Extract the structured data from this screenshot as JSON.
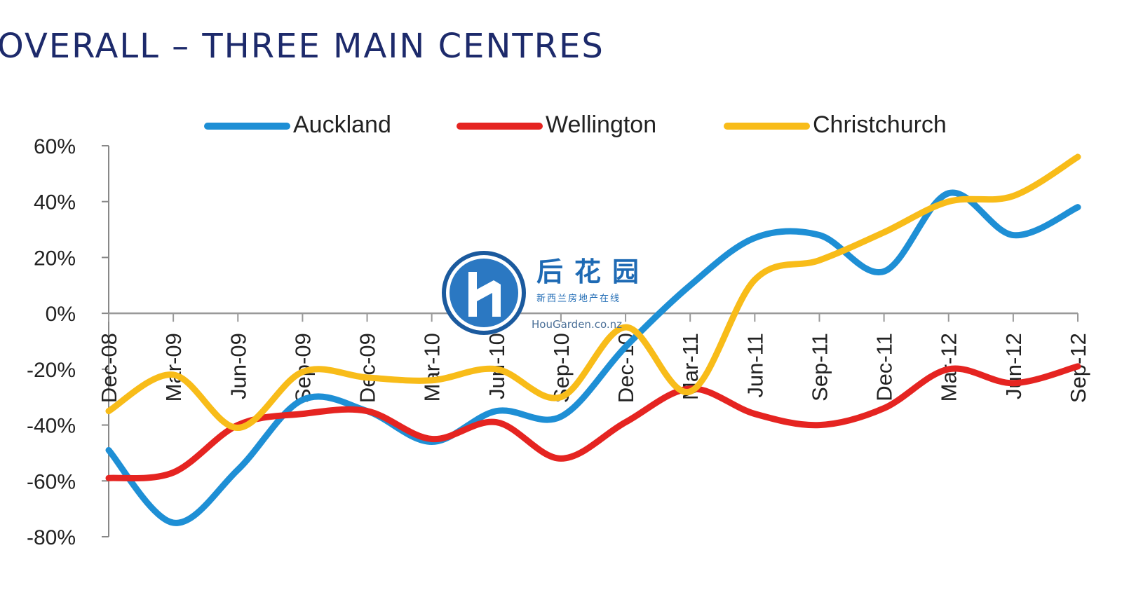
{
  "title": "OVERALL – THREE MAIN CENTRES",
  "watermark": {
    "cn_name": "后花园",
    "cn_sub": "新西兰房地产在线",
    "url": "HouGarden.co.nz"
  },
  "chart_data": {
    "type": "line",
    "categories": [
      "Dec-08",
      "Mar-09",
      "Jun-09",
      "Sep-09",
      "Dec-09",
      "Mar-10",
      "Jun-10",
      "Sep-10",
      "Dec-10",
      "Mar-11",
      "Jun-11",
      "Sep-11",
      "Dec-11",
      "Mar-12",
      "Jun-12",
      "Sep-12"
    ],
    "ylim": [
      -80,
      60
    ],
    "yticks": [
      -80,
      -60,
      -40,
      -20,
      0,
      20,
      40,
      60
    ],
    "ytick_labels": [
      "-80%",
      "-60%",
      "-40%",
      "-20%",
      "0%",
      "20%",
      "40%",
      "60%"
    ],
    "legend_position": "top",
    "series": [
      {
        "name": "Auckland",
        "color": "#1e8fd5",
        "values": [
          -49,
          -75,
          -56,
          -31,
          -35,
          -46,
          -35,
          -37,
          -12,
          10,
          27,
          28,
          15,
          43,
          28,
          38
        ]
      },
      {
        "name": "Wellington",
        "color": "#e52421",
        "values": [
          -59,
          -57,
          -40,
          -36,
          -35,
          -45,
          -39,
          -52,
          -39,
          -27,
          -36,
          -40,
          -34,
          -20,
          -25,
          -19
        ]
      },
      {
        "name": "Christchurch",
        "color": "#f8bc19",
        "values": [
          -35,
          -22,
          -41,
          -21,
          -23,
          -24,
          -20,
          -30,
          -5,
          -28,
          12,
          19,
          29,
          40,
          42,
          56
        ]
      }
    ]
  }
}
